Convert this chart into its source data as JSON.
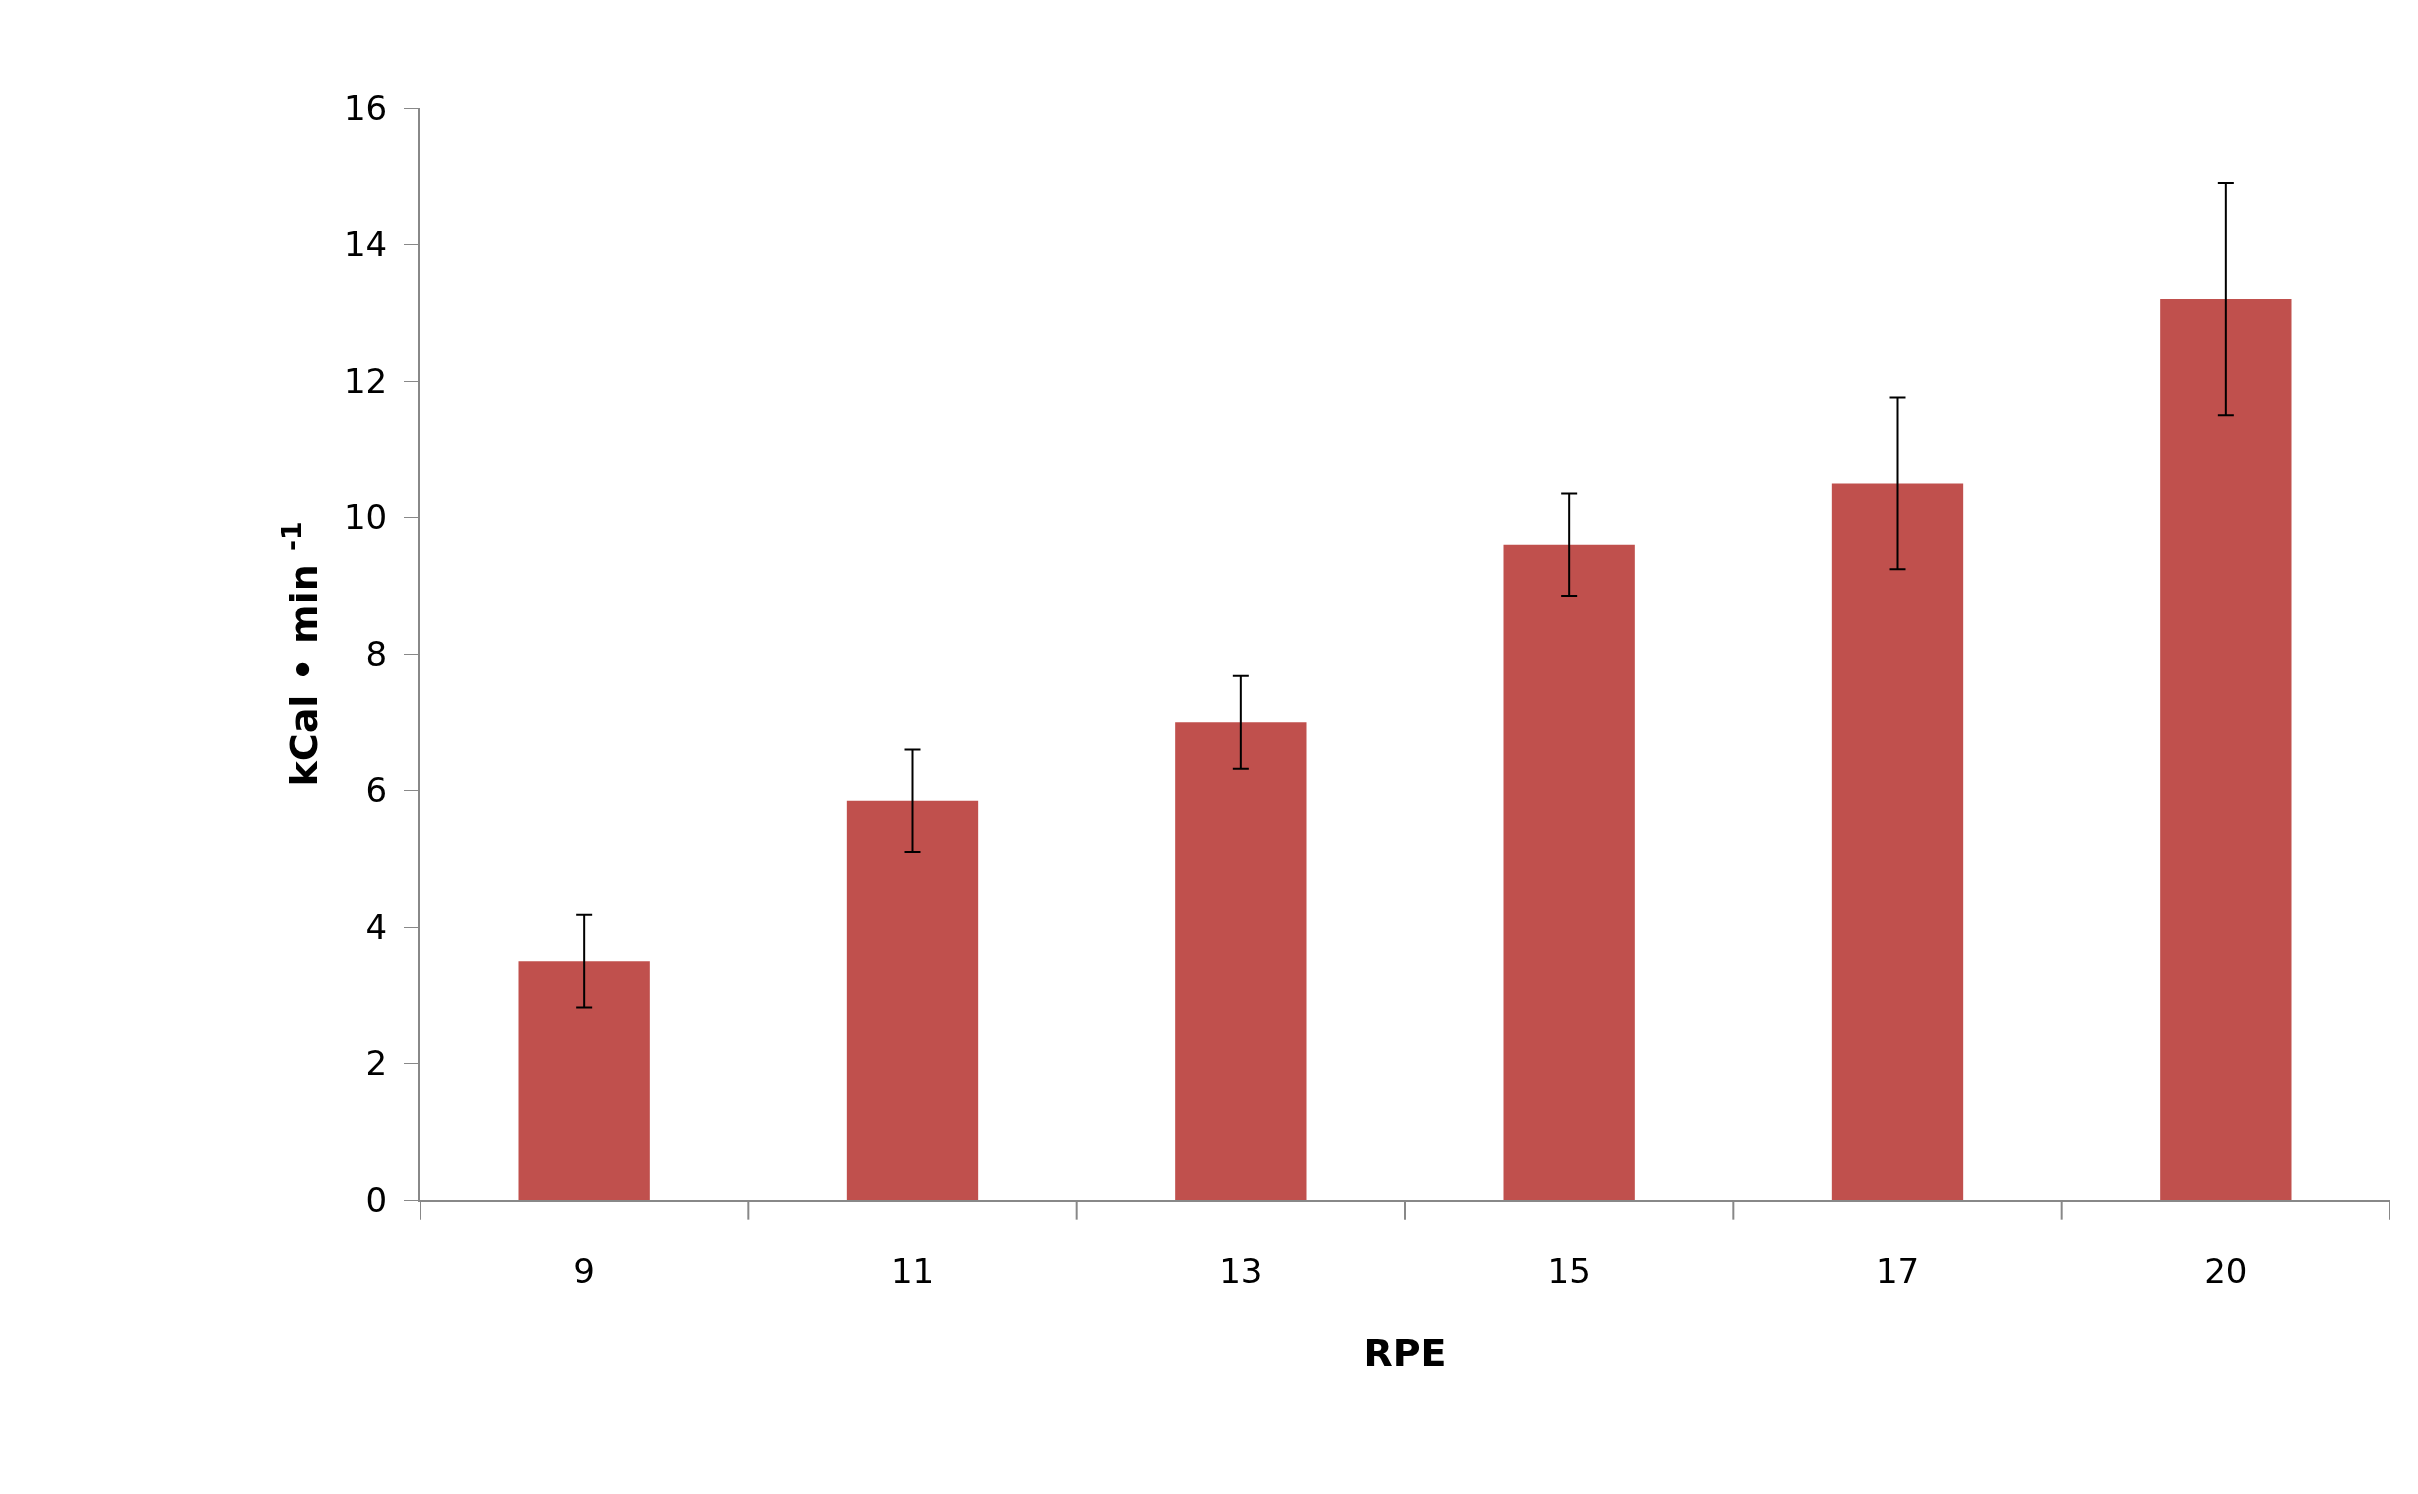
{
  "chart_data": {
    "type": "bar",
    "xlabel": "RPE",
    "ylabel": "kCal • min $^{-1}$",
    "categories": [
      "9",
      "11",
      "13",
      "15",
      "17",
      "20"
    ],
    "values": [
      3.5,
      5.85,
      7.0,
      9.6,
      10.5,
      13.2
    ],
    "errors": [
      0.68,
      0.75,
      0.68,
      0.75,
      1.26,
      1.7
    ],
    "color": "#c0504d",
    "ylim": [
      0,
      16
    ],
    "yticks": [
      0,
      2,
      4,
      6,
      8,
      10,
      12,
      14,
      16
    ]
  }
}
